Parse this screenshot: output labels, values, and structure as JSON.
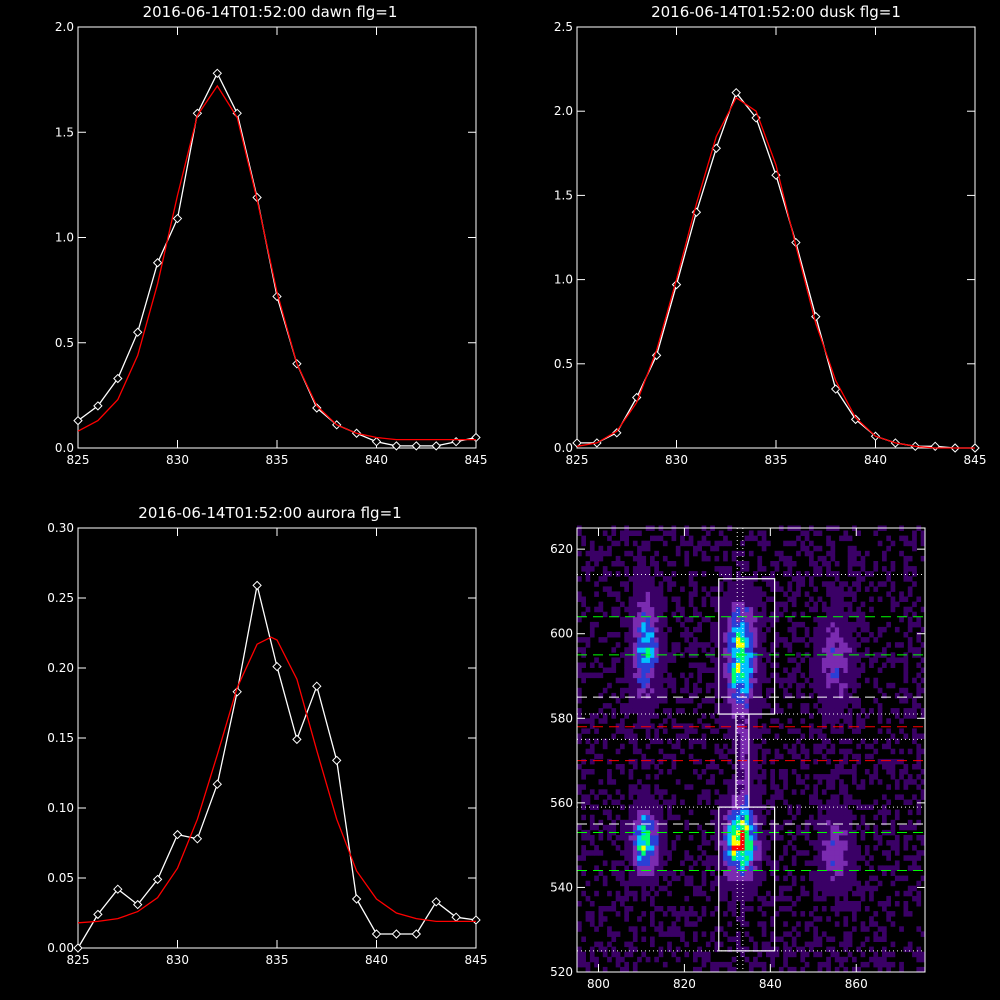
{
  "chart_data": [
    {
      "type": "line",
      "title": "2016-06-14T01:52:00 dawn flg=1",
      "xlim": [
        825,
        845
      ],
      "ylim": [
        0,
        2.0
      ],
      "xticks": [
        825,
        830,
        835,
        840,
        845
      ],
      "yticks": [
        "0.0",
        "0.5",
        "1.0",
        "1.5",
        "2.0"
      ],
      "series": [
        {
          "style": "observed",
          "color": "#ffffff",
          "x": [
            825,
            826,
            827,
            828,
            829,
            830,
            831,
            832,
            833,
            834,
            835,
            836,
            837,
            838,
            839,
            840,
            841,
            842,
            843,
            844,
            845
          ],
          "y": [
            0.13,
            0.2,
            0.33,
            0.55,
            0.88,
            1.09,
            1.59,
            1.78,
            1.59,
            1.19,
            0.72,
            0.4,
            0.19,
            0.11,
            0.07,
            0.03,
            0.01,
            0.01,
            0.01,
            0.03,
            0.05
          ]
        },
        {
          "style": "fit",
          "color": "#ff0000",
          "x": [
            825,
            826,
            827,
            828,
            829,
            830,
            831,
            832,
            833,
            834,
            835,
            836,
            837,
            838,
            839,
            840,
            841,
            842,
            843,
            844,
            845
          ],
          "y": [
            0.08,
            0.13,
            0.23,
            0.44,
            0.78,
            1.2,
            1.58,
            1.72,
            1.57,
            1.18,
            0.74,
            0.4,
            0.2,
            0.11,
            0.07,
            0.05,
            0.04,
            0.04,
            0.04,
            0.04,
            0.04
          ]
        }
      ]
    },
    {
      "type": "line",
      "title": "2016-06-14T01:52:00 dusk flg=1",
      "xlim": [
        825,
        845
      ],
      "ylim": [
        0,
        2.5
      ],
      "xticks": [
        825,
        830,
        835,
        840,
        845
      ],
      "yticks": [
        "0.0",
        "0.5",
        "1.0",
        "1.5",
        "2.0",
        "2.5"
      ],
      "series": [
        {
          "style": "observed",
          "color": "#ffffff",
          "x": [
            825,
            826,
            827,
            828,
            829,
            830,
            831,
            832,
            833,
            834,
            835,
            836,
            837,
            838,
            839,
            840,
            841,
            842,
            843,
            844,
            845
          ],
          "y": [
            0.03,
            0.03,
            0.09,
            0.3,
            0.55,
            0.97,
            1.4,
            1.78,
            2.11,
            1.96,
            1.62,
            1.22,
            0.78,
            0.35,
            0.17,
            0.07,
            0.03,
            0.01,
            0.01,
            0.0,
            0.0
          ]
        },
        {
          "style": "fit",
          "color": "#ff0000",
          "x": [
            825,
            826,
            827,
            828,
            829,
            830,
            831,
            832,
            833,
            834,
            835,
            836,
            837,
            838,
            839,
            840,
            841,
            842,
            843,
            844,
            845
          ],
          "y": [
            0.01,
            0.03,
            0.1,
            0.27,
            0.58,
            1.0,
            1.45,
            1.85,
            2.08,
            2.0,
            1.68,
            1.2,
            0.74,
            0.4,
            0.18,
            0.07,
            0.03,
            0.01,
            0.0,
            0.0,
            0.0
          ]
        }
      ]
    },
    {
      "type": "line",
      "title": "2016-06-14T01:52:00 aurora flg=1",
      "xlim": [
        825,
        845
      ],
      "ylim": [
        0,
        0.3
      ],
      "xticks": [
        825,
        830,
        835,
        840,
        845
      ],
      "yticks": [
        "0.00",
        "0.05",
        "0.10",
        "0.15",
        "0.20",
        "0.25",
        "0.30"
      ],
      "series": [
        {
          "style": "observed",
          "color": "#ffffff",
          "x": [
            825,
            826,
            827,
            828,
            829,
            830,
            831,
            832,
            833,
            834,
            835,
            836,
            837,
            838,
            839,
            840,
            841,
            842,
            843,
            844,
            845
          ],
          "y": [
            0.0,
            0.024,
            0.042,
            0.031,
            0.049,
            0.081,
            0.078,
            0.117,
            0.183,
            0.259,
            0.201,
            0.149,
            0.187,
            0.134,
            0.035,
            0.01,
            0.01,
            0.01,
            0.033,
            0.022,
            0.02
          ]
        },
        {
          "style": "fit",
          "color": "#ff0000",
          "x": [
            825,
            826,
            827,
            828,
            829,
            830,
            831,
            832,
            833,
            834,
            834.7,
            835,
            836,
            837,
            838,
            839,
            840,
            841,
            842,
            843,
            844,
            845
          ],
          "y": [
            0.018,
            0.019,
            0.021,
            0.026,
            0.036,
            0.057,
            0.092,
            0.138,
            0.186,
            0.217,
            0.222,
            0.22,
            0.192,
            0.141,
            0.092,
            0.055,
            0.035,
            0.025,
            0.021,
            0.019,
            0.019,
            0.019
          ]
        }
      ]
    },
    {
      "type": "heatmap",
      "xlim": [
        795,
        876
      ],
      "ylim": [
        520,
        625
      ],
      "xticks": [
        800,
        820,
        840,
        860
      ],
      "yticks": [
        520,
        540,
        560,
        580,
        600,
        620
      ],
      "colormap": [
        "#000000",
        "#3a0066",
        "#7a2bb0",
        "#2a3fd6",
        "#00c0ff",
        "#00ff70",
        "#ffff00",
        "#ff0000"
      ],
      "blobs": [
        {
          "x": 811,
          "y": 597,
          "sx": 2.0,
          "sy": 7.5,
          "peak": 0.55
        },
        {
          "x": 833,
          "y": 595,
          "sx": 2.3,
          "sy": 8.0,
          "peak": 0.78
        },
        {
          "x": 855,
          "y": 594,
          "sx": 2.5,
          "sy": 7.0,
          "peak": 0.32
        },
        {
          "x": 811,
          "y": 551,
          "sx": 2.0,
          "sy": 5.0,
          "peak": 0.7
        },
        {
          "x": 833,
          "y": 551,
          "sx": 2.4,
          "sy": 5.5,
          "peak": 0.95
        },
        {
          "x": 855,
          "y": 549,
          "sx": 2.5,
          "sy": 6.0,
          "peak": 0.3
        },
        {
          "x": 834,
          "y": 570,
          "sx": 1.3,
          "sy": 9.0,
          "peak": 0.22
        }
      ],
      "boxes": [
        {
          "x0": 828,
          "x1": 841,
          "y0": 581,
          "y1": 613
        },
        {
          "x0": 828,
          "x1": 841,
          "y0": 525,
          "y1": 559
        },
        {
          "x0": 832,
          "x1": 835,
          "y0": 559,
          "y1": 581
        }
      ],
      "hlines": [
        {
          "y": 604,
          "color": "#00ff00",
          "dash": "dashed"
        },
        {
          "y": 595,
          "color": "#00ff00",
          "dash": "dashed"
        },
        {
          "y": 585,
          "color": "#ffffff",
          "dash": "dashed"
        },
        {
          "y": 578,
          "color": "#ff0000",
          "dash": "dashed"
        },
        {
          "y": 570,
          "color": "#ff0000",
          "dash": "dashed"
        },
        {
          "y": 555,
          "color": "#ffffff",
          "dash": "dashed"
        },
        {
          "y": 553,
          "color": "#00ff00",
          "dash": "dashed"
        },
        {
          "y": 544,
          "color": "#00ff00",
          "dash": "dashed"
        },
        {
          "y": 614,
          "color": "#ffffff",
          "dash": "dotted"
        },
        {
          "y": 581,
          "color": "#ffffff",
          "dash": "dotted"
        },
        {
          "y": 575,
          "color": "#ffffff",
          "dash": "dotted"
        },
        {
          "y": 559,
          "color": "#ffffff",
          "dash": "dotted"
        },
        {
          "y": 525,
          "color": "#ffffff",
          "dash": "dotted"
        }
      ],
      "vlines": [
        {
          "x": 832.3,
          "color": "#ffffff",
          "dash": "dotted"
        },
        {
          "x": 833.6,
          "color": "#ffffff",
          "dash": "dotted"
        }
      ]
    }
  ]
}
